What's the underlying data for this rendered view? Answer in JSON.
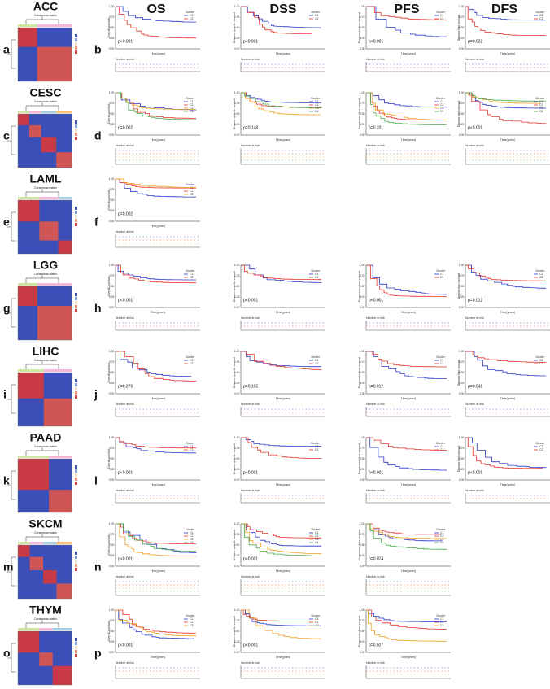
{
  "columns": [
    "OS",
    "DSS",
    "PFS",
    "DFS"
  ],
  "y_labels": [
    "Overall survival",
    "Disease specific survival",
    "Progression free survival",
    "Disease free survival"
  ],
  "yticks": [
    "1.00",
    "0.75",
    "0.50",
    "0.25",
    "0.00"
  ],
  "time_label": "Time(years)",
  "risk_label": "Number at risk",
  "legend_title": "Cluster",
  "matrix_label": "Consensus matrix",
  "rows": [
    {
      "cancer": "ACC",
      "heat_letter": "a",
      "km_letter": "b",
      "clusters": [
        "C1",
        "C2"
      ],
      "p": [
        "p<0.001",
        "p<0.001",
        "p<0.001",
        "p=0.022"
      ]
    },
    {
      "cancer": "CESC",
      "heat_letter": "c",
      "km_letter": "d",
      "clusters": [
        "C1",
        "C2",
        "C3",
        "C4"
      ],
      "p": [
        "p=0.002",
        "p=0.148",
        "p=0.201",
        "p<0.001"
      ]
    },
    {
      "cancer": "LAML",
      "heat_letter": "e",
      "km_letter": "f",
      "clusters": [
        "C1",
        "C2",
        "C3"
      ],
      "p": [
        "p=0.002"
      ]
    },
    {
      "cancer": "LGG",
      "heat_letter": "g",
      "km_letter": "h",
      "clusters": [
        "C1",
        "C2"
      ],
      "p": [
        "p<0.001",
        "p<0.001",
        "p<0.001",
        "p=0.012"
      ]
    },
    {
      "cancer": "LIHC",
      "heat_letter": "i",
      "km_letter": "j",
      "clusters": [
        "C1",
        "C2"
      ],
      "p": [
        "p=0.279",
        "p=0.165",
        "p=0.012",
        "p=0.041"
      ]
    },
    {
      "cancer": "PAAD",
      "heat_letter": "k",
      "km_letter": "l",
      "clusters": [
        "C1",
        "C2"
      ],
      "p": [
        "p<0.001",
        "p<0.001",
        "p<0.001",
        "p<0.001"
      ]
    },
    {
      "cancer": "SKCM",
      "heat_letter": "m",
      "km_letter": "n",
      "clusters": [
        "C1",
        "C2",
        "C3",
        "C4"
      ],
      "p": [
        "p<0.001",
        "p<0.001",
        "p=0.074"
      ]
    },
    {
      "cancer": "THYM",
      "heat_letter": "o",
      "km_letter": "p",
      "clusters": [
        "C1",
        "C2",
        "C3"
      ],
      "p": [
        "p<0.001",
        "p<0.001",
        "p=0.027"
      ]
    }
  ]
}
